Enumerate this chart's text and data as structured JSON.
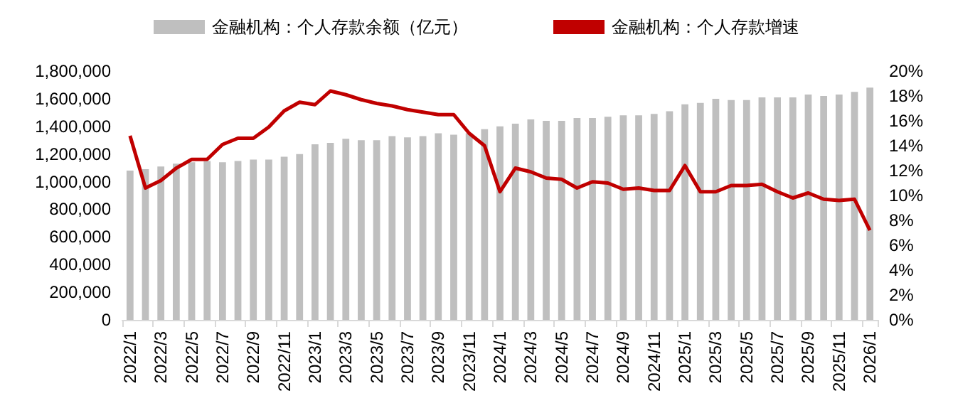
{
  "chart_data": {
    "type": "bar",
    "categories": [
      "2022/1",
      null,
      "2022/3",
      null,
      "2022/5",
      null,
      "2022/7",
      null,
      "2022/9",
      null,
      "2022/11",
      null,
      "2023/1",
      null,
      "2023/3",
      null,
      "2023/5",
      null,
      "2023/7",
      null,
      "2023/9",
      null,
      "2023/11",
      null,
      "2024/1",
      null,
      "2024/3",
      null,
      "2024/5",
      null,
      "2024/7",
      null,
      "2024/9",
      null,
      "2024/11",
      null,
      "2025/1",
      null,
      "2025/3",
      null,
      "2025/5",
      null,
      "2025/7",
      null,
      "2025/9",
      null,
      "2025/11",
      null,
      "2026/1"
    ],
    "series": [
      {
        "name": "金融机构：个人存款余额（亿元）",
        "color": "#bfbfbf",
        "values": [
          1080000,
          1090000,
          1110000,
          1130000,
          1140000,
          1150000,
          1140000,
          1150000,
          1160000,
          1160000,
          1180000,
          1200000,
          1270000,
          1280000,
          1310000,
          1300000,
          1300000,
          1330000,
          1320000,
          1330000,
          1350000,
          1340000,
          1350000,
          1380000,
          1400000,
          1420000,
          1450000,
          1440000,
          1440000,
          1460000,
          1460000,
          1470000,
          1480000,
          1480000,
          1490000,
          1510000,
          1560000,
          1570000,
          1600000,
          1590000,
          1590000,
          1610000,
          1610000,
          1610000,
          1630000,
          1620000,
          1630000,
          1650000,
          1680000
        ]
      },
      {
        "name": "金融机构：个人存款增速",
        "type": "line",
        "axis": "y2",
        "color": "#c00000",
        "values": [
          14.8,
          10.6,
          11.2,
          12.2,
          12.9,
          12.9,
          14.1,
          14.6,
          14.6,
          15.5,
          16.8,
          17.5,
          17.3,
          18.4,
          18.1,
          17.7,
          17.4,
          17.2,
          16.9,
          16.7,
          16.5,
          16.5,
          15.0,
          14.0,
          10.3,
          12.2,
          11.9,
          11.4,
          11.3,
          10.6,
          11.1,
          11.0,
          10.5,
          10.6,
          10.4,
          10.4,
          12.4,
          10.3,
          10.3,
          10.8,
          10.8,
          10.9,
          10.3,
          9.8,
          10.2,
          9.7,
          9.6,
          9.7,
          7.2
        ]
      }
    ],
    "ylim": [
      0,
      1800000
    ],
    "yticks": [
      0,
      {
        "value": 200000,
        "label": "200,000"
      },
      {
        "value": 400000,
        "label": "400,000"
      },
      {
        "value": 600000,
        "label": "600,000"
      },
      {
        "value": 800000,
        "label": "800,000"
      },
      {
        "value": 1000000,
        "label": "1,000,000"
      },
      {
        "value": 1200000,
        "label": "1,200,000"
      },
      {
        "value": 1400000,
        "label": "1,400,000"
      },
      {
        "value": 1600000,
        "label": "1,600,000"
      },
      {
        "value": 1800000,
        "label": "1,800,000"
      }
    ],
    "y2lim": [
      0,
      20
    ],
    "y2ticks": [
      {
        "value": 0,
        "label": "0%"
      },
      {
        "value": 2,
        "label": "2%"
      },
      {
        "value": 4,
        "label": "4%"
      },
      {
        "value": 6,
        "label": "6%"
      },
      {
        "value": 8,
        "label": "8%"
      },
      {
        "value": 10,
        "label": "10%"
      },
      {
        "value": 12,
        "label": "12%"
      },
      {
        "value": 14,
        "label": "14%"
      },
      {
        "value": 16,
        "label": "16%"
      },
      {
        "value": 18,
        "label": "18%"
      },
      {
        "value": 20,
        "label": "20%"
      }
    ],
    "legend": "top",
    "grid": false,
    "marker": "none",
    "line_style": "solid"
  }
}
